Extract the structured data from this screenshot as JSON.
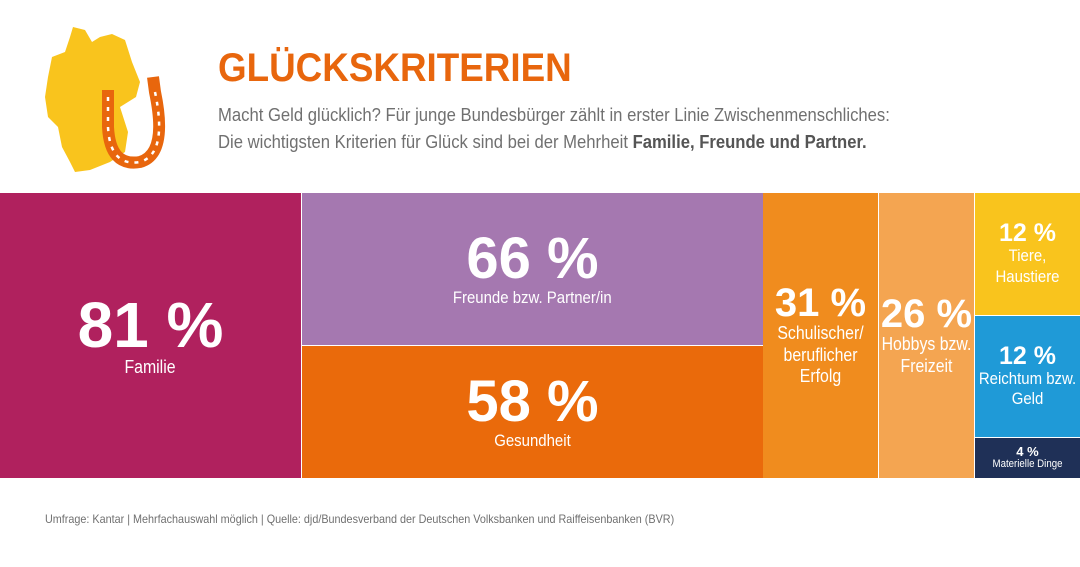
{
  "header": {
    "title": "GLÜCKSKRITERIEN",
    "subtitle_line1": "Macht Geld glücklich? Für junge Bundesbürger zählt in erster Linie Zwischenmenschliches:",
    "subtitle_line2_prefix": "Die wichtigsten Kriterien für Glück sind bei der Mehrheit ",
    "subtitle_line2_bold": "Familie, Freunde und Partner."
  },
  "chart_data": {
    "type": "treemap",
    "title": "GLÜCKSKRITERIEN",
    "unit": "%",
    "items": [
      {
        "label": "Familie",
        "value": 81,
        "value_text": "81 %",
        "color": "#b0215e"
      },
      {
        "label": "Freunde bzw. Partner/in",
        "value": 66,
        "value_text": "66 %",
        "color": "#a578b0"
      },
      {
        "label": "Gesundheit",
        "value": 58,
        "value_text": "58 %",
        "color": "#ea6a0b"
      },
      {
        "label": "Schulischer/ beruflicher Erfolg",
        "value": 31,
        "value_text": "31 %",
        "color": "#f08c1e"
      },
      {
        "label": "Hobbys bzw. Freizeit",
        "value": 26,
        "value_text": "26 %",
        "color": "#f4a551"
      },
      {
        "label": "Tiere, Haustiere",
        "value": 12,
        "value_text": "12 %",
        "color": "#f9c41d"
      },
      {
        "label": "Reichtum bzw. Geld",
        "value": 12,
        "value_text": "12 %",
        "color": "#1f9ad7"
      },
      {
        "label": "Materielle Dinge",
        "value": 4,
        "value_text": "4 %",
        "color": "#1f3057"
      }
    ]
  },
  "footer": "Umfrage: Kantar | Mehrfachauswahl möglich | Quelle: djd/Bundesverband der Deutschen Volksbanken und Raiffeisenbanken (BVR)"
}
